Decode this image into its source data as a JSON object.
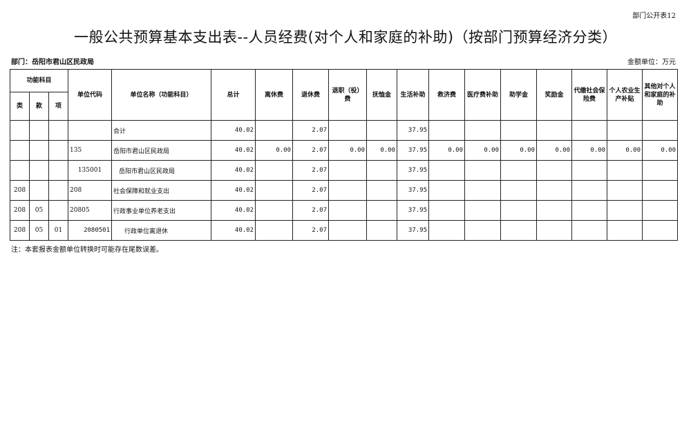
{
  "form_tag": "部门公开表12",
  "title": "一般公共预算基本支出表--人员经费(对个人和家庭的补助)（按部门预算经济分类）",
  "department": "部门：岳阳市君山区民政局",
  "unit": "金额单位：万元",
  "headers": {
    "group": "功能科目",
    "lei": "类",
    "kuan": "款",
    "xiang": "项",
    "code": "单位代码",
    "name": "单位名称（功能科目）",
    "cols": [
      "总计",
      "离休费",
      "退休费",
      "退职（役）费",
      "抚恤金",
      "生活补助",
      "救济费",
      "医疗费补助",
      "助学金",
      "奖励金",
      "代缴社会保险费",
      "个人农业生产补贴",
      "其他对个人和家庭的补助"
    ]
  },
  "rows": [
    {
      "lei": "",
      "kuan": "",
      "xiang": "",
      "code": "",
      "name": "合计",
      "values": [
        "40.02",
        "",
        "2.07",
        "",
        "",
        "37.95",
        "",
        "",
        "",
        "",
        "",
        "",
        ""
      ]
    },
    {
      "lei": "",
      "kuan": "",
      "xiang": "",
      "code": "135",
      "name": "岳阳市君山区民政局",
      "values": [
        "40.02",
        "0.00",
        "2.07",
        "0.00",
        "0.00",
        "37.95",
        "0.00",
        "0.00",
        "0.00",
        "0.00",
        "0.00",
        "0.00",
        "0.00"
      ]
    },
    {
      "lei": "",
      "kuan": "",
      "xiang": "",
      "code": "135001",
      "name": "岳阳市君山区民政局",
      "values": [
        "40.02",
        "",
        "2.07",
        "",
        "",
        "37.95",
        "",
        "",
        "",
        "",
        "",
        "",
        ""
      ]
    },
    {
      "lei": "208",
      "kuan": "",
      "xiang": "",
      "code": "208",
      "name": "社会保障和就业支出",
      "values": [
        "40.02",
        "",
        "2.07",
        "",
        "",
        "37.95",
        "",
        "",
        "",
        "",
        "",
        "",
        ""
      ]
    },
    {
      "lei": "208",
      "kuan": "05",
      "xiang": "",
      "code": "20805",
      "name": "行政事业单位养老支出",
      "values": [
        "40.02",
        "",
        "2.07",
        "",
        "",
        "37.95",
        "",
        "",
        "",
        "",
        "",
        "",
        ""
      ]
    },
    {
      "lei": "208",
      "kuan": "05",
      "xiang": "01",
      "code": "2080501",
      "name": "行政单位离退休",
      "values": [
        "40.02",
        "",
        "2.07",
        "",
        "",
        "37.95",
        "",
        "",
        "",
        "",
        "",
        "",
        ""
      ]
    }
  ],
  "note": "注：本套报表金额单位转换时可能存在尾数误差。"
}
